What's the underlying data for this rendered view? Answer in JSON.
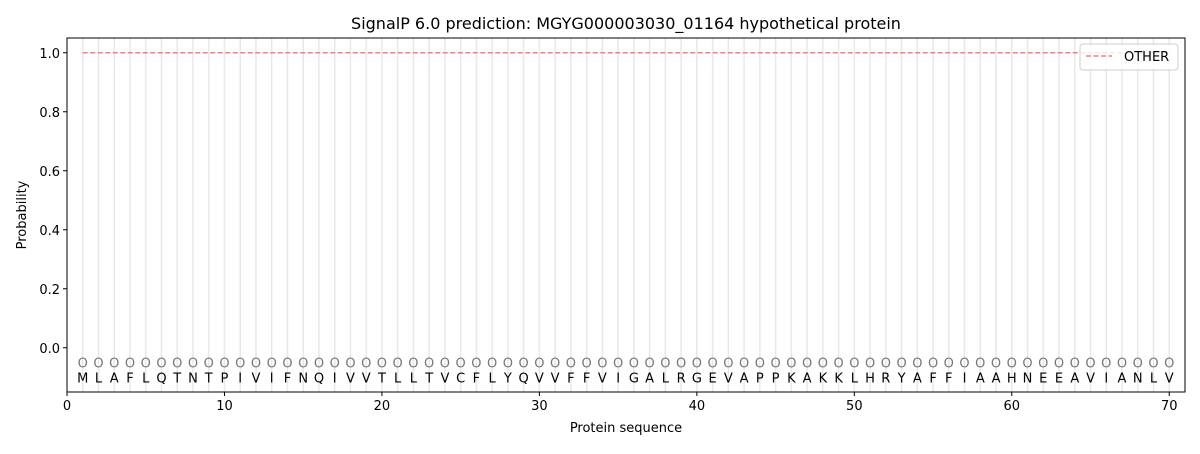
{
  "chart_data": {
    "type": "line",
    "title": "SignalP 6.0 prediction: MGYG000003030_01164 hypothetical protein",
    "xlabel": "Protein sequence",
    "ylabel": "Probability",
    "xlim": [
      0,
      71
    ],
    "ylim": [
      -0.15,
      1.05
    ],
    "xticks": [
      0,
      10,
      20,
      30,
      40,
      50,
      60,
      70
    ],
    "yticks": [
      0.0,
      0.2,
      0.4,
      0.6,
      0.8,
      1.0
    ],
    "ytick_labels": [
      "0.0",
      "0.2",
      "0.4",
      "0.6",
      "0.8",
      "1.0"
    ],
    "grid": "vertical lines at each residue",
    "legend_position": "top-right",
    "sequence": "MLAFLQTNTPIVIFNQIVVTLLTVCFLYQVVFFVIGALRGEVAPPKAKKLHRYAFFIAAHNEEAVIANLV",
    "region_label": "O",
    "series": [
      {
        "name": "OTHER",
        "color": "#f08080",
        "style": "dashed",
        "x_start": 1,
        "x_end": 70,
        "value": 1.0
      }
    ]
  }
}
